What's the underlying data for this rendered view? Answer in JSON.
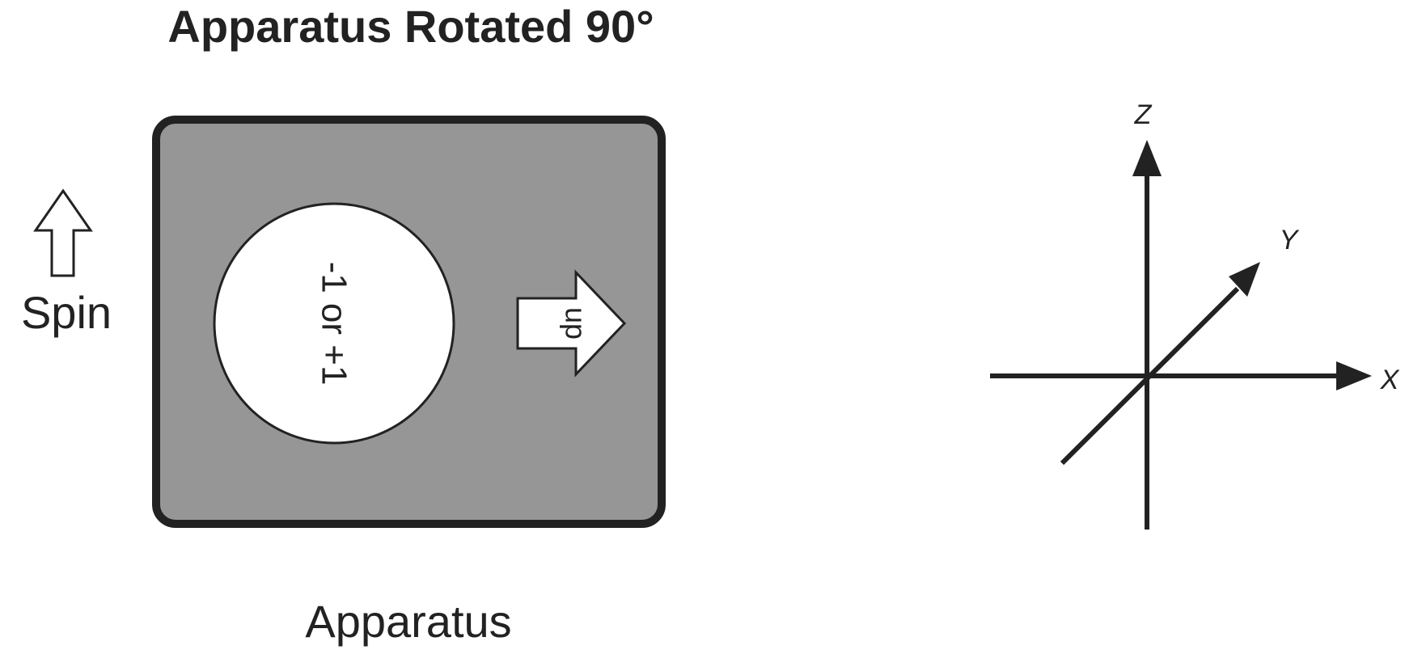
{
  "title": "Apparatus Rotated 90°",
  "spin_label": "Spin",
  "apparatus_label": "Apparatus",
  "readout_text": "-1 or +1",
  "direction_arrow_label": "up",
  "axes": {
    "x_label": "X",
    "y_label": "Y",
    "z_label": "Z"
  },
  "colors": {
    "apparatus_fill": "#969696",
    "apparatus_border": "#222222",
    "ink": "#222222",
    "circle_fill": "#ffffff"
  }
}
